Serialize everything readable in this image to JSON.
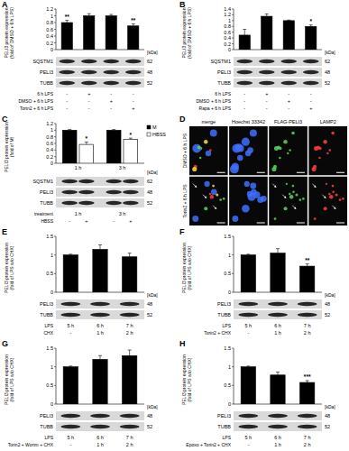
{
  "chart_data": [
    {
      "panel": "A",
      "type": "bar",
      "y_label": "PELI3 protein expression (fold of DMSO + 6 h LPS)",
      "categories": [
        null,
        null,
        null,
        null
      ],
      "values": [
        0.8,
        1.0,
        1.0,
        0.7
      ],
      "errors": [
        0.07,
        0.06,
        0.04,
        0.06
      ],
      "significance": [
        "**",
        null,
        null,
        "**"
      ],
      "color": "#000000",
      "ylim": [
        0,
        1.2
      ],
      "yticks": [
        0,
        0.2,
        0.4,
        0.6,
        0.8,
        1,
        1.2
      ],
      "kda_label": "[kDa]",
      "blots": [
        {
          "label": "SQSTM1",
          "kda": 62
        },
        {
          "label": "PELI3",
          "kda": 48
        },
        {
          "label": "TUBB",
          "kda": 52
        }
      ],
      "treatments": [
        {
          "label": "6 h LPS",
          "cells": [
            "-",
            "+",
            "-",
            "-"
          ]
        },
        {
          "label": "DMSO + 6 h LPS",
          "cells": [
            "-",
            "-",
            "+",
            "-"
          ]
        },
        {
          "label": "Torin2 + 6 h LPS",
          "cells": [
            "-",
            "-",
            "-",
            "+"
          ]
        }
      ]
    },
    {
      "panel": "B",
      "type": "bar",
      "y_label": "PELI3 protein expression (fold of DMSO + 6 h LPS)",
      "categories": [
        null,
        null,
        null,
        null
      ],
      "values": [
        0.5,
        1.15,
        1.0,
        0.8
      ],
      "errors": [
        0.2,
        0.08,
        0.02,
        0.05
      ],
      "significance": [
        null,
        null,
        null,
        "*"
      ],
      "color": "#000000",
      "ylim": [
        0,
        1.4
      ],
      "yticks": [
        0,
        0.2,
        0.4,
        0.6,
        0.8,
        1,
        1.2,
        1.4
      ],
      "kda_label": "[kDa]",
      "blots": [
        {
          "label": "SQSTM1",
          "kda": 62
        },
        {
          "label": "PELI3",
          "kda": 48
        },
        {
          "label": "TUBB",
          "kda": 52
        }
      ],
      "treatments": [
        {
          "label": "6 h LPS",
          "cells": [
            "-",
            "+",
            "-",
            "-"
          ]
        },
        {
          "label": "DMSO + 6 h LPS",
          "cells": [
            "-",
            "-",
            "+",
            "-"
          ]
        },
        {
          "label": "Rapa + 6 h LPS",
          "cells": [
            "-",
            "-",
            "-",
            "+"
          ]
        }
      ]
    },
    {
      "panel": "C",
      "type": "bar",
      "y_label": "PELI3 protein expression (fold of M)",
      "categories": [
        "1 h",
        "3 h"
      ],
      "series": [
        {
          "name": "M",
          "color": "#000000",
          "values": [
            1,
            1
          ],
          "errors": [
            0.02,
            0.02
          ],
          "significance": [
            null,
            null
          ]
        },
        {
          "name": "HBSS",
          "color": "#ffffff",
          "values": [
            0.57,
            0.72
          ],
          "errors": [
            0.07,
            0.04
          ],
          "significance": [
            "*",
            "*"
          ]
        }
      ],
      "legend": "upper right",
      "ylim": [
        0,
        1.2
      ],
      "yticks": [
        0,
        0.2,
        0.4,
        0.6,
        0.8,
        1,
        1.2
      ],
      "kda_label": "[kDa]",
      "blots": [
        {
          "label": "SQSTM1",
          "kda": 62
        },
        {
          "label": "PELI3",
          "kda": 48
        },
        {
          "label": "TUBB",
          "kda": 52
        }
      ],
      "treatments": [
        {
          "label": "treatment",
          "cells": [
            "1 h",
            "3 h"
          ]
        },
        {
          "label": "HBSS",
          "cells": [
            "-",
            "+",
            "-",
            "+"
          ]
        }
      ]
    },
    {
      "panel": "E",
      "type": "bar",
      "y_label": "PELI3 protein expression (fold of LPS w/o CHX)",
      "categories": [
        null,
        null,
        null
      ],
      "values": [
        1.0,
        1.15,
        0.95
      ],
      "errors": [
        0.02,
        0.12,
        0.1
      ],
      "significance": [
        null,
        null,
        null
      ],
      "color": "#000000",
      "ylim": [
        0,
        1.5
      ],
      "yticks": [
        0,
        0.5,
        1,
        1.5
      ],
      "kda_label": "[kDa]",
      "blots": [
        {
          "label": "PELI3",
          "kda": 48
        },
        {
          "label": "TUBB",
          "kda": 52
        }
      ],
      "treatments": [
        {
          "label": "LPS",
          "cells": [
            "5 h",
            "6 h",
            "7 h"
          ]
        },
        {
          "label": "CHX",
          "cells": [
            "-",
            "1 h",
            "2 h"
          ]
        }
      ]
    },
    {
      "panel": "F",
      "type": "bar",
      "y_label": "PELI3 protein expression (fold of LPS w/o CHX)",
      "categories": [
        null,
        null,
        null
      ],
      "values": [
        1.0,
        1.05,
        0.7
      ],
      "errors": [
        0.02,
        0.12,
        0.06
      ],
      "significance": [
        null,
        null,
        "**"
      ],
      "color": "#000000",
      "ylim": [
        0,
        1.5
      ],
      "yticks": [
        0,
        0.5,
        1,
        1.5
      ],
      "kda_label": "[kDa]",
      "blots": [
        {
          "label": "PELI3",
          "kda": 48
        },
        {
          "label": "TUBB",
          "kda": 52
        }
      ],
      "treatments": [
        {
          "label": "LPS",
          "cells": [
            "5 h",
            "6 h",
            "7 h"
          ]
        },
        {
          "label": "Torin2 + CHX",
          "cells": [
            "-",
            "1 h",
            "2 h"
          ]
        }
      ]
    },
    {
      "panel": "G",
      "type": "bar",
      "y_label": "PELI3 protein expression (fold of LPS w/o CHX)",
      "categories": [
        null,
        null,
        null
      ],
      "values": [
        1.0,
        1.2,
        1.3
      ],
      "errors": [
        0.02,
        0.1,
        0.15
      ],
      "significance": [
        null,
        null,
        null
      ],
      "color": "#000000",
      "ylim": [
        0,
        1.5
      ],
      "yticks": [
        0,
        0.5,
        1,
        1.5
      ],
      "kda_label": "[kDa]",
      "blots": [
        {
          "label": "PELI3",
          "kda": 48
        },
        {
          "label": "TUBB",
          "kda": 52
        }
      ],
      "treatments": [
        {
          "label": "LPS",
          "cells": [
            "5 h",
            "6 h",
            "7 h"
          ]
        },
        {
          "label": "Torin2 + Wortm + CHX",
          "cells": [
            "-",
            "1 h",
            "2 h"
          ]
        }
      ]
    },
    {
      "panel": "H",
      "type": "bar",
      "y_label": "PELI3 protein expression (fold of LPS w/o CHX)",
      "categories": [
        null,
        null,
        null
      ],
      "values": [
        1.0,
        0.78,
        0.58
      ],
      "errors": [
        0.02,
        0.08,
        0.05
      ],
      "significance": [
        null,
        null,
        "***"
      ],
      "color": "#000000",
      "ylim": [
        0,
        1.5
      ],
      "yticks": [
        0,
        0.5,
        1,
        1.5
      ],
      "kda_label": "[kDa]",
      "blots": [
        {
          "label": "PELI3",
          "kda": 48
        },
        {
          "label": "TUBB",
          "kda": 52
        }
      ],
      "treatments": [
        {
          "label": "LPS",
          "cells": [
            "5 h",
            "6 h",
            "7 h"
          ]
        },
        {
          "label": "Epoxo + Torin2 + CHX",
          "cells": [
            "-",
            "1 h",
            "2 h"
          ]
        }
      ]
    }
  ],
  "micrograph": {
    "panel": "D",
    "columns": [
      "merge",
      "Hoechst 33342",
      "FLAG-PELI3",
      "LAMP2"
    ],
    "rows": [
      "DMSO + 6 h LPS",
      "Torin2 + 6 h LPS"
    ]
  }
}
